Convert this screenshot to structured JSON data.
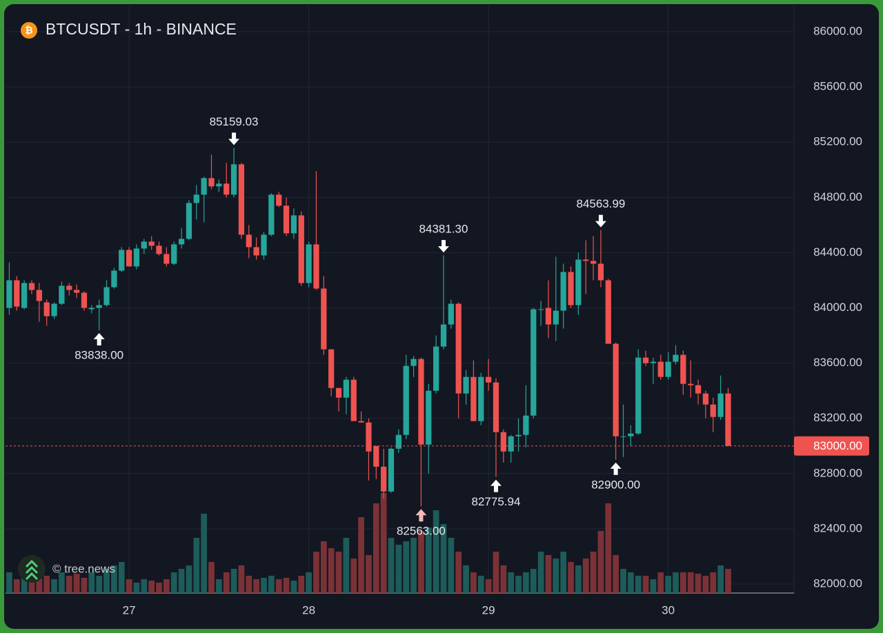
{
  "chart_data": {
    "type": "candlestick",
    "title": "BTCUSDT - 1h - BINANCE",
    "watermark": "© tree.news",
    "up_color": "#26a69a",
    "down_color": "#ef5350",
    "volume_up_color": "#1d5c5a",
    "volume_down_color": "#7b3237",
    "grid": true,
    "ylim": [
      81935,
      86190
    ],
    "yticks": [
      {
        "value": 82000,
        "label": "82000.00"
      },
      {
        "value": 82400,
        "label": "82400.00"
      },
      {
        "value": 82800,
        "label": "82800.00"
      },
      {
        "value": 83200,
        "label": "83200.00"
      },
      {
        "value": 83600,
        "label": "83600.00"
      },
      {
        "value": 84000,
        "label": "84000.00"
      },
      {
        "value": 84400,
        "label": "84400.00"
      },
      {
        "value": 84800,
        "label": "84800.00"
      },
      {
        "value": 85200,
        "label": "85200.00"
      },
      {
        "value": 85600,
        "label": "85600.00"
      },
      {
        "value": 86000,
        "label": "86000.00"
      }
    ],
    "xlim": [
      -0.5,
      104.8
    ],
    "xticks": [
      {
        "value": 16,
        "label": "27"
      },
      {
        "value": 40,
        "label": "28"
      },
      {
        "value": 64,
        "label": "29"
      },
      {
        "value": 88,
        "label": "30"
      }
    ],
    "last_price": {
      "value": 83000,
      "label": "83000.00"
    },
    "open": [
      84000,
      84200,
      84000,
      84180,
      84130,
      84040,
      83940,
      84030,
      84160,
      84130,
      84110,
      83990,
      84000,
      84020,
      84150,
      84270,
      84420,
      84300,
      84430,
      84480,
      84450,
      84390,
      84320,
      84460,
      84500,
      84760,
      84820,
      84940,
      84880,
      84900,
      84820,
      85040,
      84530,
      84440,
      84380,
      84530,
      84820,
      84740,
      84540,
      84670,
      84180,
      84460,
      84140,
      83700,
      83420,
      83350,
      83480,
      83180,
      83170,
      83000,
      82850,
      82670,
      82980,
      83080,
      83580,
      83630,
      83010,
      83400,
      83720,
      83880,
      84030,
      83380,
      83500,
      83180,
      83500,
      83460,
      83100,
      82960,
      83070,
      83080,
      83220,
      83990,
      84000,
      83880,
      83980,
      84260,
      84020,
      84350,
      84340,
      84320,
      84200,
      83740,
      83070,
      83070,
      83090,
      83640,
      83600,
      83610,
      83500,
      83610,
      83660,
      83450,
      83440,
      83380,
      83300,
      83210,
      83380
    ],
    "high": [
      84330,
      84230,
      84200,
      84200,
      84180,
      84060,
      84040,
      84190,
      84180,
      84170,
      84120,
      84020,
      84060,
      84200,
      84290,
      84440,
      84440,
      84460,
      84500,
      84520,
      84480,
      84440,
      84480,
      84580,
      84780,
      84890,
      84950,
      85110,
      84930,
      85050,
      85159.03,
      85050,
      84600,
      84510,
      84550,
      84830,
      84840,
      84800,
      84720,
      84700,
      84480,
      84990,
      84230,
      83700,
      83420,
      83500,
      83500,
      83250,
      83200,
      83000,
      82980,
      82990,
      83120,
      83660,
      83650,
      83640,
      83450,
      83800,
      84381.3,
      84060,
      84040,
      83550,
      83620,
      83530,
      83630,
      83490,
      83120,
      83080,
      83200,
      83440,
      84000,
      84050,
      84200,
      84370,
      84320,
      84300,
      84400,
      84490,
      84520,
      84563.99,
      84210,
      83750,
      83300,
      83150,
      83700,
      83690,
      83640,
      83660,
      83680,
      83730,
      83690,
      83620,
      83480,
      83400,
      83350,
      83510,
      83420
    ],
    "low": [
      83950,
      83980,
      83990,
      84100,
      83900,
      83870,
      83920,
      84020,
      84090,
      84070,
      83980,
      83960,
      83838,
      84010,
      84140,
      84260,
      84300,
      84280,
      84390,
      84420,
      84380,
      84300,
      84310,
      84430,
      84490,
      84640,
      84620,
      84860,
      84840,
      84800,
      84800,
      84500,
      84360,
      84350,
      84350,
      84520,
      84730,
      84520,
      84500,
      84160,
      84150,
      84130,
      83660,
      83360,
      83250,
      83230,
      83200,
      83170,
      82750,
      82760,
      82620,
      82660,
      82950,
      83050,
      83500,
      82563,
      82800,
      83380,
      83700,
      83850,
      83200,
      83300,
      83180,
      83150,
      83400,
      82775.94,
      82880,
      82880,
      82960,
      82990,
      83200,
      83870,
      83780,
      83760,
      83850,
      84000,
      83950,
      84100,
      84200,
      84150,
      83740,
      82900,
      82920,
      83000,
      83080,
      83580,
      83450,
      83480,
      83480,
      83590,
      83370,
      83350,
      83300,
      83200,
      83100,
      83190,
      83000
    ],
    "close": [
      84200,
      84010,
      84180,
      84130,
      84050,
      83940,
      84030,
      84160,
      84130,
      84110,
      84000,
      84000,
      84020,
      84150,
      84270,
      84420,
      84300,
      84430,
      84480,
      84450,
      84390,
      84320,
      84460,
      84500,
      84760,
      84820,
      84940,
      84880,
      84900,
      84820,
      85040,
      84530,
      84440,
      84380,
      84530,
      84820,
      84740,
      84540,
      84670,
      84180,
      84460,
      84140,
      83700,
      83420,
      83350,
      83480,
      83180,
      83170,
      82960,
      82850,
      82670,
      82980,
      83080,
      83580,
      83630,
      83010,
      83400,
      83720,
      83880,
      84030,
      83380,
      83500,
      83180,
      83500,
      83460,
      83100,
      82960,
      83070,
      83080,
      83220,
      83990,
      83990,
      83880,
      83980,
      84260,
      84020,
      84350,
      84340,
      84320,
      84200,
      83740,
      83070,
      83070,
      83090,
      83640,
      83600,
      83610,
      83500,
      83610,
      83660,
      83450,
      83440,
      83380,
      83300,
      83210,
      83380,
      83000
    ],
    "volume": [
      30,
      20,
      25,
      30,
      35,
      25,
      20,
      30,
      25,
      28,
      22,
      30,
      25,
      35,
      40,
      45,
      20,
      15,
      20,
      18,
      15,
      20,
      30,
      35,
      40,
      80,
      115,
      45,
      20,
      30,
      35,
      40,
      25,
      20,
      22,
      25,
      20,
      22,
      18,
      25,
      30,
      60,
      75,
      65,
      60,
      80,
      50,
      110,
      55,
      130,
      145,
      80,
      70,
      75,
      80,
      90,
      95,
      120,
      100,
      80,
      60,
      40,
      30,
      25,
      20,
      60,
      40,
      30,
      25,
      30,
      35,
      60,
      55,
      50,
      60,
      45,
      40,
      50,
      60,
      90,
      130,
      55,
      35,
      30,
      25,
      25,
      20,
      30,
      25,
      30,
      30,
      30,
      28,
      25,
      30,
      40,
      35
    ],
    "annotations": [
      {
        "x": 30,
        "value": 85159.03,
        "label": "85159.03",
        "position": "above"
      },
      {
        "x": 12,
        "value": 83838,
        "label": "83838.00",
        "position": "below"
      },
      {
        "x": 58,
        "value": 84381.3,
        "label": "84381.30",
        "position": "above"
      },
      {
        "x": 55,
        "value": 82563,
        "label": "82563.00",
        "position": "below"
      },
      {
        "x": 65,
        "value": 82775.94,
        "label": "82775.94",
        "position": "below"
      },
      {
        "x": 79,
        "value": 84563.99,
        "label": "84563.99",
        "position": "above"
      },
      {
        "x": 81,
        "value": 82900,
        "label": "82900.00",
        "position": "below"
      }
    ]
  }
}
